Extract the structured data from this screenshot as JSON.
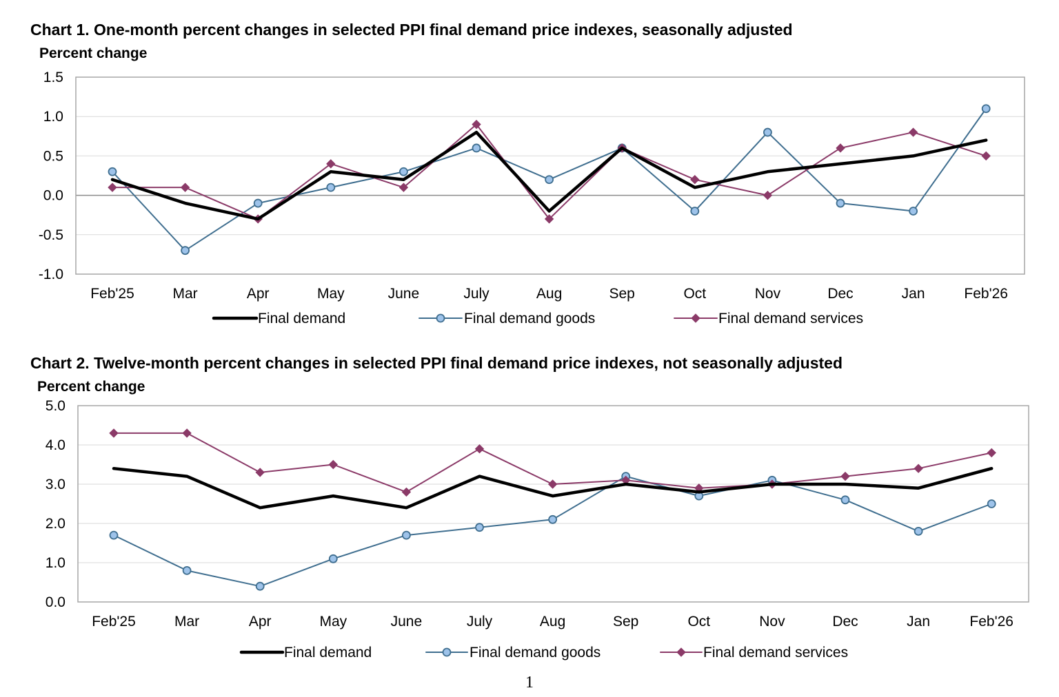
{
  "page": {
    "number": "1"
  },
  "colors": {
    "final_demand": "#000000",
    "goods": "#3f6e8f",
    "goods_fill": "#9ec3ea",
    "services": "#8b3a68",
    "grid": "#d9d9d9",
    "zero_line": "#8c8c8c",
    "frame": "#a6a6a6"
  },
  "chart_data": [
    {
      "type": "line",
      "title": "Chart 1. One-month percent changes in selected PPI final demand price indexes, seasonally adjusted",
      "ylabel": "Percent change",
      "xlabel": "",
      "ylim": [
        -1.0,
        1.5
      ],
      "yticks": [
        "-1.0",
        "-0.5",
        "0.0",
        "0.5",
        "1.0",
        "1.5"
      ],
      "categories": [
        "Feb'25",
        "Mar",
        "Apr",
        "May",
        "June",
        "July",
        "Aug",
        "Sep",
        "Oct",
        "Nov",
        "Dec",
        "Jan",
        "Feb'26"
      ],
      "series": [
        {
          "name": "Final demand",
          "values": [
            0.2,
            -0.1,
            -0.3,
            0.3,
            0.2,
            0.8,
            -0.2,
            0.6,
            0.1,
            0.3,
            0.4,
            0.5,
            0.7
          ]
        },
        {
          "name": "Final demand goods",
          "values": [
            0.3,
            -0.7,
            -0.1,
            0.1,
            0.3,
            0.6,
            0.2,
            0.6,
            -0.2,
            0.8,
            -0.1,
            -0.2,
            1.1
          ]
        },
        {
          "name": "Final demand services",
          "values": [
            0.1,
            0.1,
            -0.3,
            0.4,
            0.1,
            0.9,
            -0.3,
            0.6,
            0.2,
            0.0,
            0.6,
            0.8,
            0.5
          ]
        }
      ],
      "grid": true,
      "legend": "bottom"
    },
    {
      "type": "line",
      "title": "Chart 2. Twelve-month percent changes in selected PPI final demand price indexes, not seasonally adjusted",
      "ylabel": "Percent change",
      "xlabel": "",
      "ylim": [
        0.0,
        5.0
      ],
      "yticks": [
        "0.0",
        "1.0",
        "2.0",
        "3.0",
        "4.0",
        "5.0"
      ],
      "categories": [
        "Feb'25",
        "Mar",
        "Apr",
        "May",
        "June",
        "July",
        "Aug",
        "Sep",
        "Oct",
        "Nov",
        "Dec",
        "Jan",
        "Feb'26"
      ],
      "series": [
        {
          "name": "Final demand",
          "values": [
            3.4,
            3.2,
            2.4,
            2.7,
            2.4,
            3.2,
            2.7,
            3.0,
            2.8,
            3.0,
            3.0,
            2.9,
            3.4
          ]
        },
        {
          "name": "Final demand goods",
          "values": [
            1.7,
            0.8,
            0.4,
            1.1,
            1.7,
            1.9,
            2.1,
            3.2,
            2.7,
            3.1,
            2.6,
            1.8,
            2.5
          ]
        },
        {
          "name": "Final demand services",
          "values": [
            4.3,
            4.3,
            3.3,
            3.5,
            2.8,
            3.9,
            3.0,
            3.1,
            2.9,
            3.0,
            3.2,
            3.4,
            3.8
          ]
        }
      ],
      "grid": true,
      "legend": "bottom"
    }
  ]
}
